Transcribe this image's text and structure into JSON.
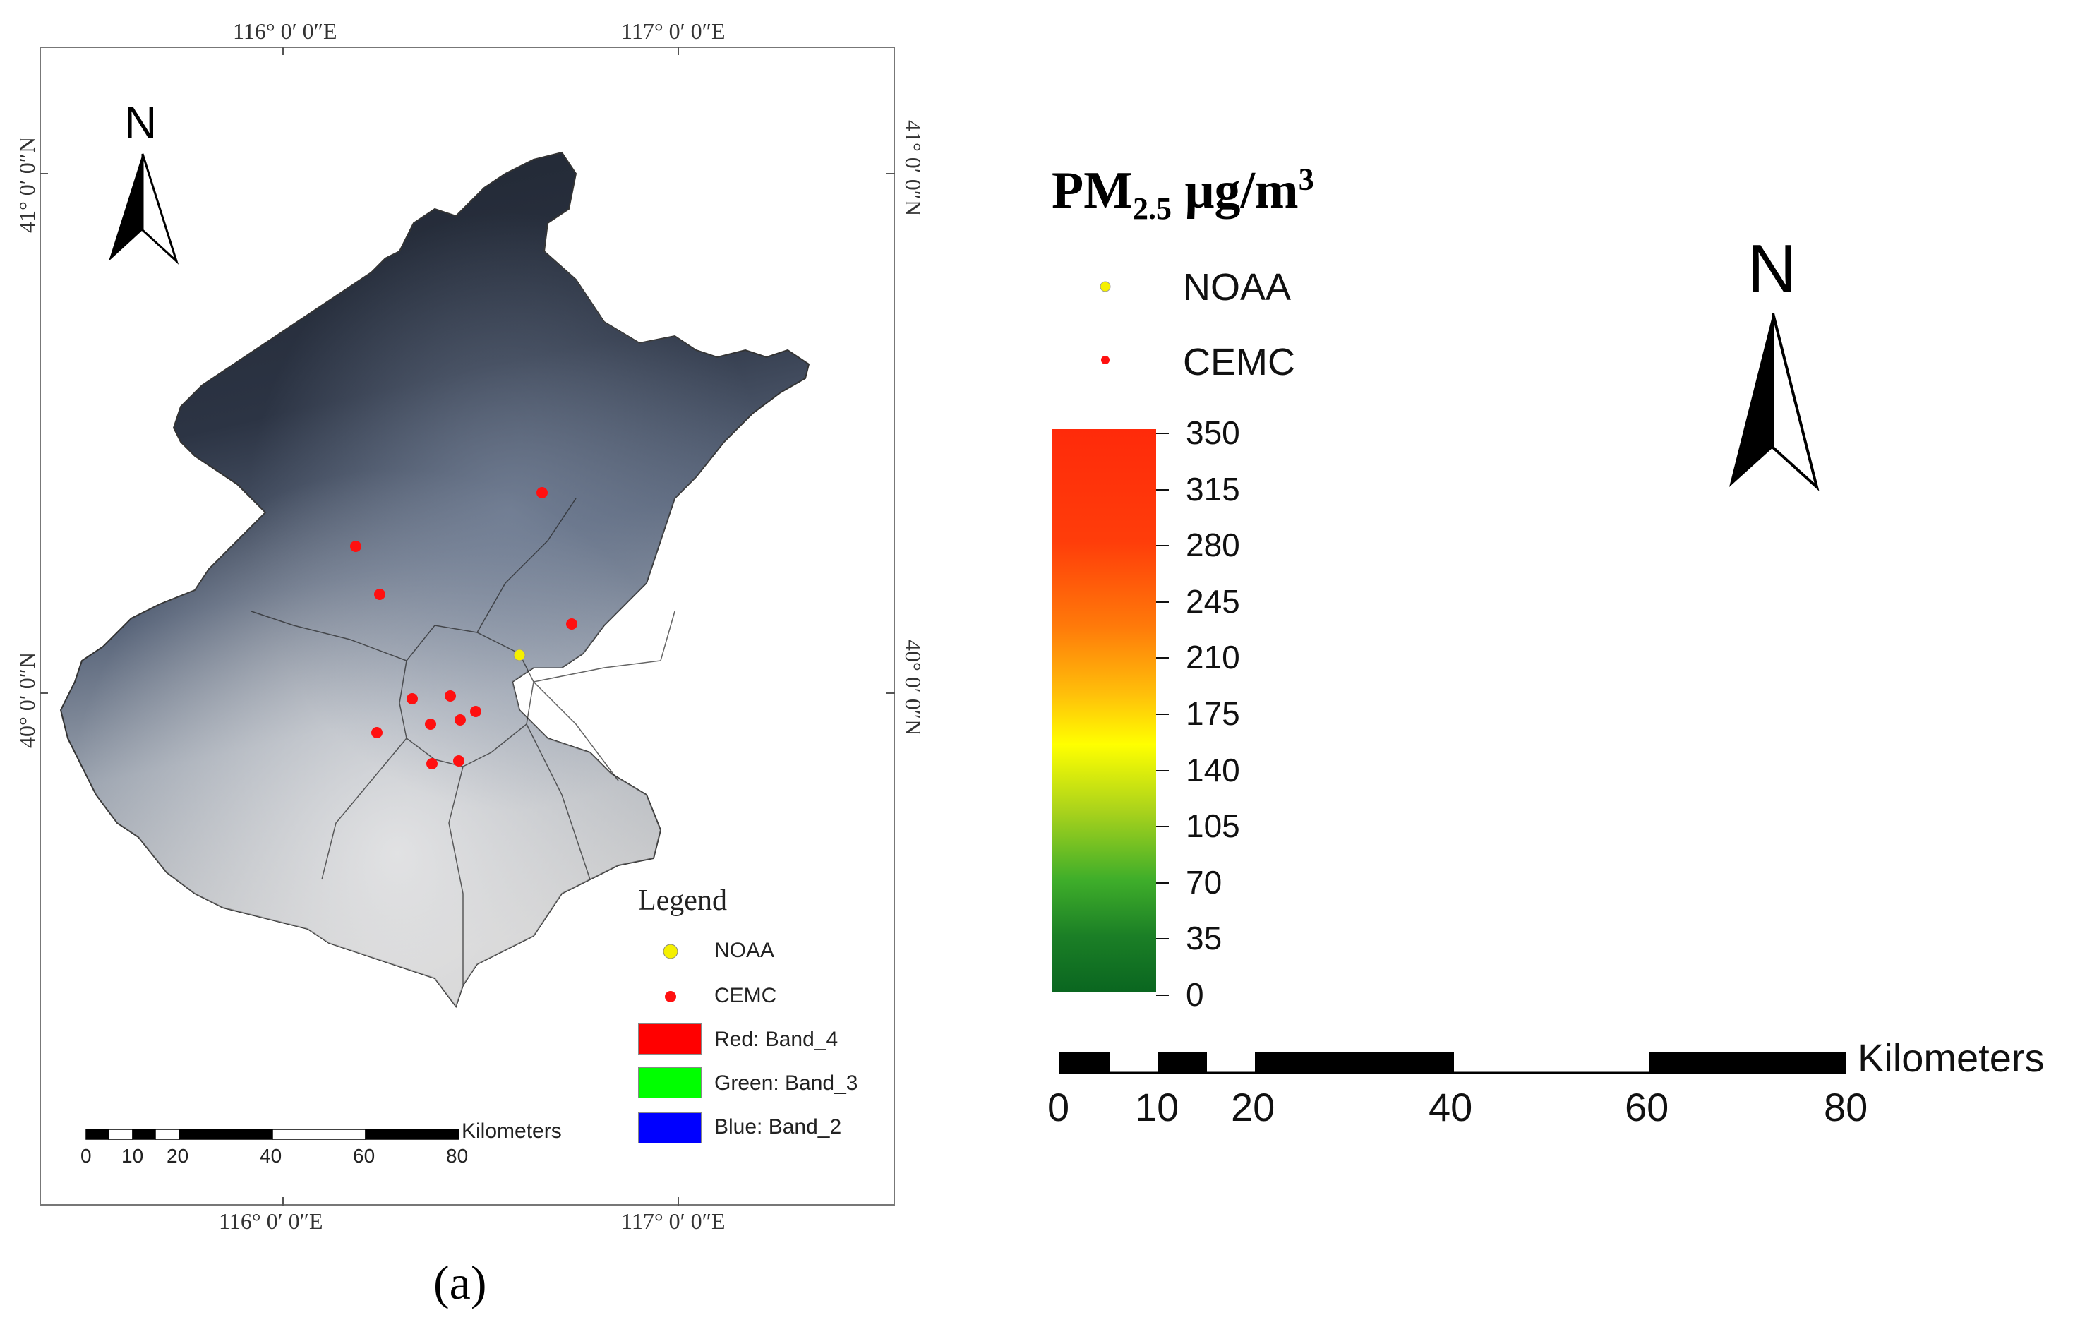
{
  "map_panel": {
    "top_coords": [
      "116°  0′ 0″E",
      "117°  0′ 0″E"
    ],
    "bottom_coords": [
      "116°  0′ 0″E",
      "117°  0′ 0″E"
    ],
    "left_coords": [
      "41°  0′ 0″N",
      "40°  0′ 0″N"
    ],
    "right_coords": [
      "41°  0′ 0″N",
      "40°  0′ 0″N"
    ],
    "north_label": "N",
    "legend": {
      "title": "Legend",
      "items": [
        {
          "label": "NOAA",
          "color": "#f5f000"
        },
        {
          "label": "CEMC",
          "color": "#ff0000"
        }
      ],
      "bands": [
        {
          "label": "Red:    Band_4",
          "color": "#ff0000"
        },
        {
          "label": "Green: Band_3",
          "color": "#00ff00"
        },
        {
          "label": "Blue:   Band_2",
          "color": "#0000ff"
        }
      ]
    },
    "scale": {
      "unit": "Kilometers",
      "ticks": [
        "0",
        "10",
        "20",
        "40",
        "60",
        "80"
      ]
    },
    "caption": "(a)"
  },
  "right_panel": {
    "title_main": "PM",
    "title_sub": "2.5",
    "title_unit": " μg/m",
    "title_sup": "3",
    "points": [
      {
        "label": "NOAA",
        "color": "#f5f000"
      },
      {
        "label": "CEMC",
        "color": "#ff0000"
      }
    ],
    "colorbar_ticks": [
      "350",
      "315",
      "280",
      "245",
      "210",
      "175",
      "140",
      "105",
      "70",
      "35",
      "0"
    ],
    "north_label": "N",
    "scale": {
      "unit": "Kilometers",
      "ticks": [
        "0",
        "10",
        "20",
        "40",
        "60",
        "80"
      ]
    }
  }
}
